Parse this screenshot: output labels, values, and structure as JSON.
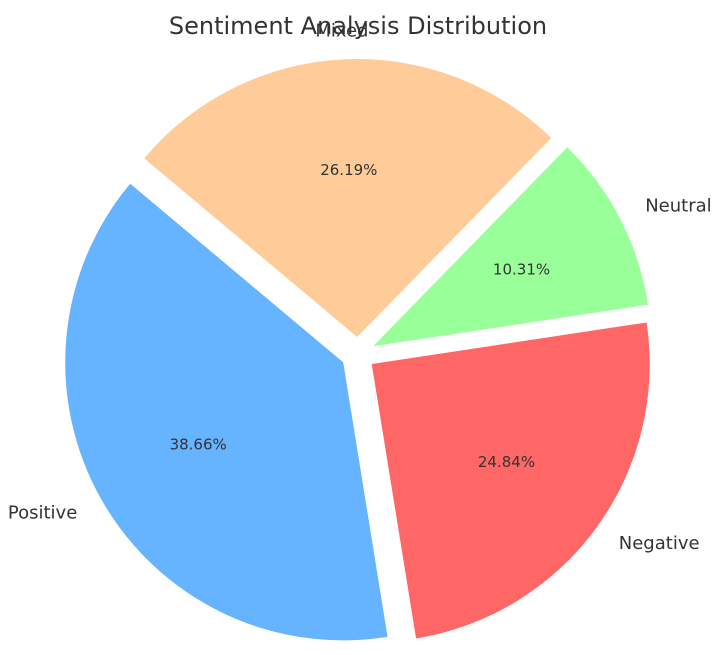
{
  "chart_data": {
    "type": "pie",
    "title": "Sentiment Analysis Distribution",
    "categories": [
      "Positive",
      "Negative",
      "Neutral",
      "Mixed"
    ],
    "values": [
      38.66,
      24.84,
      10.31,
      26.19
    ],
    "value_labels": [
      "38.66%",
      "24.84%",
      "10.31%",
      "26.19%"
    ],
    "colors": [
      "#66b3ff",
      "#ff6666",
      "#99ff99",
      "#ffcc99"
    ],
    "start_angle_deg": 140,
    "direction": "counterclockwise",
    "exploded": true
  }
}
